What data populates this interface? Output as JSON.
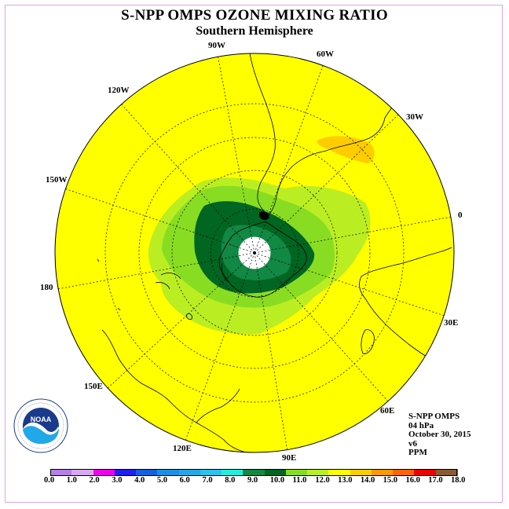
{
  "title": "S-NPP OMPS OZONE MIXING RATIO",
  "subtitle": "Southern Hemisphere",
  "longitude_labels": {
    "lon_90w": "90W",
    "lon_60w": "60W",
    "lon_30w": "30W",
    "lon_0": "0",
    "lon_30e": "30E",
    "lon_60e": "60E",
    "lon_90e": "90E",
    "lon_120e": "120E",
    "lon_150e": "150E",
    "lon_180": "180",
    "lon_150w": "150W",
    "lon_120w": "120W"
  },
  "info": {
    "instrument": "S-NPP OMPS",
    "level": "04 hPa",
    "date": "October 30, 2015",
    "version": "v6",
    "units": "PPM"
  },
  "colorbar": {
    "ticks": [
      "0.0",
      "1.0",
      "2.0",
      "3.0",
      "4.0",
      "5.0",
      "6.0",
      "7.0",
      "8.0",
      "9.0",
      "10.0",
      "11.0",
      "12.0",
      "13.0",
      "14.0",
      "15.0",
      "16.0",
      "17.0",
      "18.0"
    ],
    "colors": [
      "#b57fe6",
      "#d9a8f0",
      "#ee00ee",
      "#2020ee",
      "#1560e0",
      "#1890e6",
      "#20a8e8",
      "#26c4ee",
      "#22eedd",
      "#118844",
      "#006622",
      "#88dd22",
      "#bbee22",
      "#ffff00",
      "#ffcc00",
      "#ff9900",
      "#ff6600",
      "#ee0000",
      "#8b5a33"
    ]
  },
  "logo": {
    "text": "NOAA",
    "ring_text": "NATIONAL OCEANIC AND ATMOSPHERIC ADMINISTRATION · U.S. DEPARTMENT OF COMMERCE"
  }
}
